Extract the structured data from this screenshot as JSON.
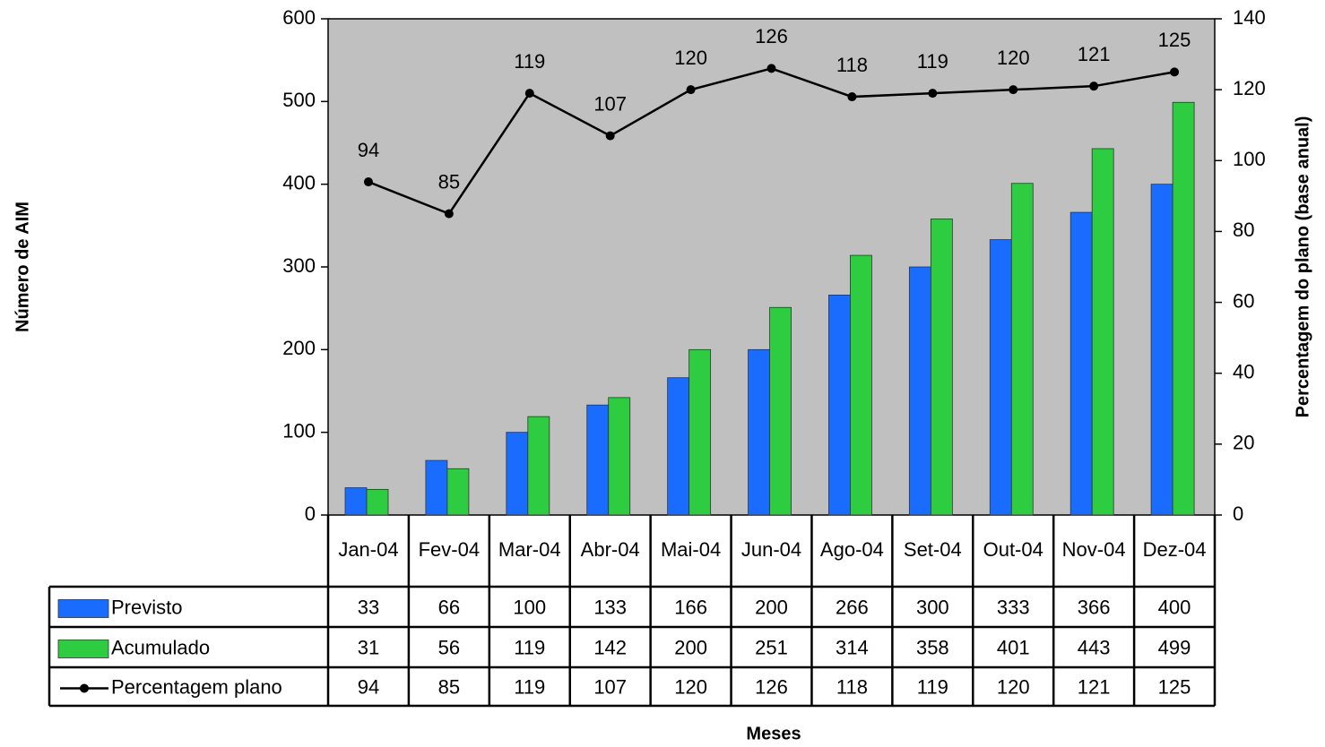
{
  "chart_data": {
    "type": "bar",
    "x_label": "Meses",
    "y_label": "Número de AIM",
    "y2_label": "Percentagem do plano (base anual)",
    "categories": [
      "Jan-04",
      "Fev-04",
      "Mar-04",
      "Abr-04",
      "Mai-04",
      "Jun-04",
      "Ago-04",
      "Set-04",
      "Out-04",
      "Nov-04",
      "Dez-04"
    ],
    "series": [
      {
        "name": "Previsto",
        "type": "bar",
        "color": "#1a6cff",
        "values": [
          33,
          66,
          100,
          133,
          166,
          200,
          266,
          300,
          333,
          366,
          400
        ]
      },
      {
        "name": "Acumulado",
        "type": "bar",
        "color": "#2ecc40",
        "values": [
          31,
          56,
          119,
          142,
          200,
          251,
          314,
          358,
          401,
          443,
          499
        ]
      },
      {
        "name": "Percentagem plano",
        "type": "line",
        "axis": "y2",
        "color": "#000000",
        "values": [
          94,
          85,
          119,
          107,
          120,
          126,
          118,
          119,
          120,
          121,
          125
        ]
      }
    ],
    "ylim": [
      0,
      600
    ],
    "yticks": [
      0,
      100,
      200,
      300,
      400,
      500,
      600
    ],
    "y2lim": [
      0,
      140
    ],
    "y2ticks": [
      0,
      20,
      40,
      60,
      80,
      100,
      120,
      140
    ],
    "plot_background": "#c0c0c0"
  }
}
